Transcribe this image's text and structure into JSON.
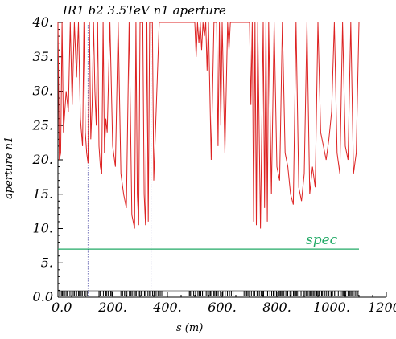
{
  "chart_data": {
    "type": "line",
    "title": "IR1 b2 3.5TeV n1 aperture",
    "xlabel": "s (m)",
    "ylabel": "aperture n1",
    "xlim": [
      0,
      1200
    ],
    "ylim": [
      0,
      40
    ],
    "x_ticks": [
      0,
      200,
      400,
      600,
      800,
      1000,
      1200
    ],
    "x_tick_labels": [
      "0.0",
      "200.",
      "400.",
      "600.",
      "800.",
      "1000.",
      "1200."
    ],
    "y_ticks": [
      0,
      5,
      10,
      15,
      20,
      25,
      30,
      35,
      40
    ],
    "y_tick_labels": [
      "0.0",
      "5.",
      "10.",
      "15.",
      "20.",
      "25.",
      "30.",
      "35.",
      "40."
    ],
    "grid": false,
    "colors": {
      "aperture": "#dd2222",
      "spec": "#22aa66",
      "elements": "#000000",
      "markers": "#333399"
    },
    "series": [
      {
        "name": "",
        "values_x": [
          0,
          5,
          10,
          15,
          20,
          30,
          38,
          45,
          52,
          60,
          68,
          75,
          82,
          90,
          95,
          100,
          105,
          110,
          115,
          120,
          125,
          130,
          135,
          140,
          145,
          150,
          155,
          160,
          165,
          170,
          175,
          180,
          190,
          200,
          210,
          220,
          230,
          240,
          250,
          260,
          270,
          280,
          285,
          290,
          295,
          300,
          305,
          310,
          315,
          320,
          325,
          330,
          335,
          340,
          345,
          350,
          370,
          380,
          385,
          390,
          395,
          400,
          500,
          505,
          510,
          515,
          520,
          525,
          530,
          535,
          540,
          545,
          550,
          560,
          570,
          580,
          585,
          590,
          595,
          600,
          610,
          620,
          625,
          630,
          700,
          705,
          710,
          715,
          720,
          725,
          730,
          740,
          750,
          755,
          760,
          765,
          770,
          780,
          790,
          800,
          810,
          820,
          830,
          840,
          850,
          860,
          870,
          880,
          890,
          900,
          910,
          920,
          930,
          940,
          950,
          960,
          970,
          980,
          990,
          1000,
          1010,
          1020,
          1030,
          1040,
          1050,
          1060,
          1070,
          1080,
          1090,
          1100
        ],
        "values_y": [
          40,
          20,
          21,
          40,
          24,
          30,
          27,
          40,
          28,
          40,
          32,
          40,
          26,
          22,
          40,
          24,
          21,
          19.5,
          40,
          23,
          28,
          40,
          30,
          25,
          40,
          22,
          19,
          18,
          40,
          21,
          26,
          24,
          40,
          22,
          19,
          40,
          18,
          15,
          13,
          40,
          12,
          10,
          40,
          15,
          10.5,
          40,
          40,
          40,
          15,
          10.5,
          40,
          11,
          40,
          40,
          40,
          17,
          40,
          40,
          40,
          40,
          40,
          40,
          40,
          35,
          40,
          37,
          40,
          36,
          40,
          38,
          40,
          33,
          40,
          20,
          40,
          40,
          22,
          40,
          25,
          40,
          21,
          40,
          36,
          40,
          40,
          28,
          40,
          11,
          40,
          10.5,
          40,
          10,
          40,
          13,
          40,
          11,
          40,
          15,
          40,
          19,
          17,
          40,
          21,
          19,
          15,
          13.5,
          40,
          16,
          14,
          18,
          40,
          15,
          19,
          16,
          40,
          24,
          22,
          20,
          23,
          27,
          40,
          21,
          18,
          40,
          22,
          20,
          40,
          18,
          21,
          40
        ],
        "color": "#dd2222"
      },
      {
        "name": "spec",
        "values_x": [
          0,
          1100
        ],
        "values_y": [
          7,
          7
        ],
        "color": "#22aa66"
      }
    ],
    "annotations": [
      {
        "text": "spec",
        "x": 1000,
        "y": 7.5,
        "color": "#22aa66"
      }
    ],
    "marker_lines_x": [
      110,
      340
    ],
    "element_ranges": [
      [
        0,
        110
      ],
      [
        150,
        200
      ],
      [
        230,
        380
      ],
      [
        480,
        640
      ],
      [
        680,
        1100
      ]
    ]
  }
}
